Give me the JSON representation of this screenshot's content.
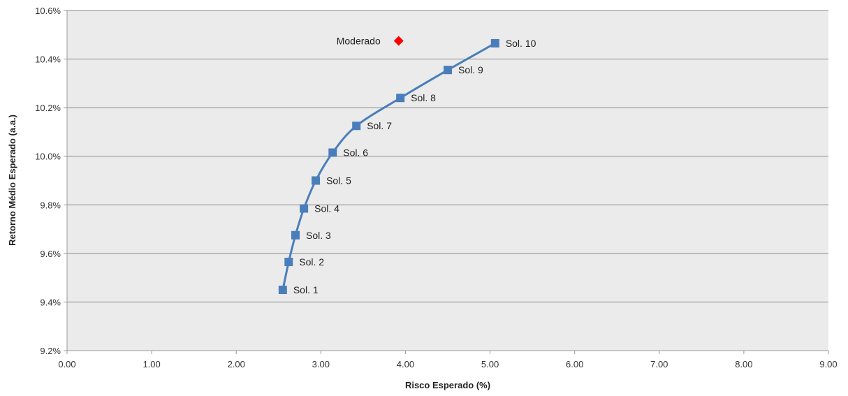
{
  "chart_data": {
    "type": "scatter",
    "xlabel": "Risco Esperado (%)",
    "ylabel": "Retorno Médio Esperado (a.a.)",
    "xlim": [
      0,
      9
    ],
    "ylim": [
      9.2,
      10.6
    ],
    "x_ticks": [
      0,
      1,
      2,
      3,
      4,
      5,
      6,
      7,
      8,
      9
    ],
    "x_tick_labels": [
      "0.00",
      "1.00",
      "2.00",
      "3.00",
      "4.00",
      "5.00",
      "6.00",
      "7.00",
      "8.00",
      "9.00"
    ],
    "y_ticks": [
      9.2,
      9.4,
      9.6,
      9.8,
      10.0,
      10.2,
      10.4,
      10.6
    ],
    "y_tick_labels": [
      "9.2%",
      "9.4%",
      "9.6%",
      "9.8%",
      "10.0%",
      "10.2%",
      "10.4%",
      "10.6%"
    ],
    "grid": "horizontal",
    "series": [
      {
        "color": "#4a7ebb",
        "marker": "square",
        "connected": true,
        "points": [
          {
            "label": "Sol. 1",
            "x": 2.55,
            "y": 9.45
          },
          {
            "label": "Sol. 2",
            "x": 2.62,
            "y": 9.565
          },
          {
            "label": "Sol. 3",
            "x": 2.7,
            "y": 9.675
          },
          {
            "label": "Sol. 4",
            "x": 2.8,
            "y": 9.785
          },
          {
            "label": "Sol. 5",
            "x": 2.94,
            "y": 9.9
          },
          {
            "label": "Sol. 6",
            "x": 3.14,
            "y": 10.015
          },
          {
            "label": "Sol. 7",
            "x": 3.42,
            "y": 10.125
          },
          {
            "label": "Sol. 8",
            "x": 3.94,
            "y": 10.24
          },
          {
            "label": "Sol. 9",
            "x": 4.5,
            "y": 10.355
          },
          {
            "label": "Sol. 10",
            "x": 5.06,
            "y": 10.465
          }
        ]
      },
      {
        "color": "#ff0000",
        "marker": "diamond",
        "connected": false,
        "points": [
          {
            "label": "Moderado",
            "x": 3.92,
            "y": 10.475
          }
        ]
      }
    ]
  }
}
